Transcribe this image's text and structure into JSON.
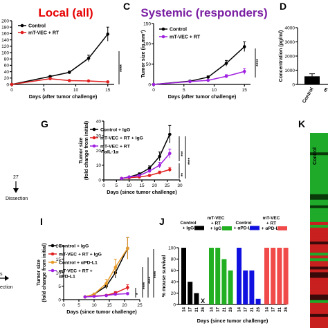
{
  "colors": {
    "black": "#000000",
    "red": "#e02020",
    "purple": "#a020e0",
    "orange": "#e69a28",
    "green": "#22b022",
    "blue": "#1010e0",
    "salmon": "#f04a4a",
    "title_red": "#e60000",
    "title_purple": "#7a1fa2"
  },
  "panel_letters": {
    "C": "C",
    "D": "D",
    "G": "G",
    "I": "I",
    "J": "J",
    "K": "K"
  },
  "left_fragments": {
    "day": "27",
    "dissection_1": "Dissection",
    "letter_s": "s",
    "dissection_2": "ection"
  },
  "chart_data": [
    {
      "id": "B",
      "type": "line",
      "title": "Local (all)",
      "xlabel": "Days (after tumor challenge)",
      "ylabel": "",
      "xlim": [
        0,
        16
      ],
      "ylim": [
        0,
        200
      ],
      "xticks": [
        "0",
        "5",
        "10",
        "15"
      ],
      "yticks": [
        "0",
        "20",
        "40",
        "60",
        "80",
        "100",
        "120",
        "140",
        "160",
        "180",
        "200"
      ],
      "series": [
        {
          "name": "Control",
          "color": "#000000",
          "x": [
            0,
            6,
            9,
            12,
            15
          ],
          "y": [
            0,
            25,
            38,
            82,
            158
          ],
          "err": [
            0,
            3,
            4,
            10,
            22
          ]
        },
        {
          "name": "mT-VEC + RT",
          "color": "#e02020",
          "x": [
            0,
            6,
            9,
            12,
            15
          ],
          "y": [
            0,
            18,
            12,
            11,
            8
          ],
          "err": [
            0,
            2,
            2,
            2,
            2
          ]
        }
      ],
      "significance": "****"
    },
    {
      "id": "C",
      "type": "line",
      "title": "Systemic (responders)",
      "xlabel": "Days (after tumor challenge)",
      "ylabel": "Tumor size (in mm²)",
      "xlim": [
        0,
        16
      ],
      "ylim": [
        0,
        150
      ],
      "xticks": [
        "0",
        "5",
        "10",
        "15"
      ],
      "yticks": [
        "0",
        "50",
        "100",
        "150"
      ],
      "series": [
        {
          "name": "Control",
          "color": "#000000",
          "x": [
            0,
            6,
            9,
            12,
            15
          ],
          "y": [
            0,
            8,
            18,
            52,
            93
          ],
          "err": [
            0,
            2,
            3,
            7,
            12
          ]
        },
        {
          "name": "mT-VEC + RT",
          "color": "#a020e0",
          "x": [
            0,
            6,
            9,
            12,
            15
          ],
          "y": [
            0,
            7,
            10,
            20,
            32
          ],
          "err": [
            0,
            2,
            2,
            4,
            7
          ]
        }
      ],
      "significance": "****"
    },
    {
      "id": "D",
      "type": "bar",
      "title": "",
      "ylabel": "Concentration (pg/ml)",
      "ylim": [
        0,
        4000
      ],
      "yticks": [
        "0",
        "1000",
        "2000",
        "3000",
        "4000"
      ],
      "categories": [
        "Control",
        "m"
      ],
      "values": [
        570,
        0
      ],
      "err": [
        180,
        0
      ]
    },
    {
      "id": "G",
      "type": "line",
      "title": "",
      "xlabel": "Days (since tumor challenge)",
      "ylabel": "Tumor size (fold change from initial)",
      "xlim": [
        0,
        30
      ],
      "ylim": [
        0,
        40
      ],
      "xticks": [
        "0",
        "5",
        "10",
        "15",
        "20",
        "25",
        "30"
      ],
      "yticks": [
        "0",
        "10",
        "20",
        "30",
        "40"
      ],
      "series": [
        {
          "name": "Control + IgG",
          "color": "#000000",
          "x": [
            7,
            10,
            14,
            18,
            22,
            26
          ],
          "y": [
            1,
            2,
            4,
            8,
            16,
            31
          ],
          "err": [
            0,
            0.4,
            0.8,
            1.5,
            3,
            6
          ]
        },
        {
          "name": "mT-VEC + RT + IgG",
          "color": "#e02020",
          "x": [
            7,
            10,
            14,
            18,
            22,
            26
          ],
          "y": [
            1,
            1.5,
            2,
            3,
            5,
            7
          ],
          "err": [
            0,
            0.3,
            0.4,
            0.6,
            1,
            1.5
          ]
        },
        {
          "name": "mT-VEC + RT + αIL-1α",
          "color": "#a020e0",
          "x": [
            7,
            10,
            14,
            18,
            22,
            26
          ],
          "y": [
            1,
            2,
            3,
            6,
            10,
            18
          ],
          "err": [
            0,
            0.4,
            0.6,
            1,
            2,
            3
          ]
        }
      ],
      "significance": [
        "***",
        "**",
        "****"
      ]
    },
    {
      "id": "I",
      "type": "line",
      "title": "",
      "xlabel": "Days (since tumor challenge)",
      "ylabel": "Tumor size (fold change from initial)",
      "xlim": [
        0,
        25
      ],
      "ylim": [
        0,
        20
      ],
      "xticks": [
        "0",
        "5",
        "10",
        "15",
        "20",
        "25"
      ],
      "yticks": [
        "0",
        "5",
        "10",
        "15",
        "20"
      ],
      "series": [
        {
          "name": "Control + IgG",
          "color": "#000000",
          "x": [
            7,
            10,
            14,
            17,
            21
          ],
          "y": [
            1,
            2,
            5,
            10,
            19
          ],
          "err": [
            0,
            0.4,
            1,
            2,
            4
          ]
        },
        {
          "name": "mT-VEC + RT + IgG",
          "color": "#e02020",
          "x": [
            7,
            10,
            14,
            17,
            21
          ],
          "y": [
            1,
            1.3,
            1.6,
            2.5,
            4.5
          ],
          "err": [
            0,
            0.2,
            0.3,
            0.5,
            1
          ]
        },
        {
          "name": "Control + αPD-L1",
          "color": "#e69a28",
          "x": [
            7,
            10,
            14,
            17,
            21
          ],
          "y": [
            1,
            2,
            6,
            12,
            19
          ],
          "err": [
            0,
            0.4,
            1.5,
            3,
            4
          ]
        },
        {
          "name": "mT-VEC + RT + αPD-L1",
          "color": "#a020e0",
          "x": [
            7,
            10,
            14,
            17,
            21
          ],
          "y": [
            1,
            1.2,
            1.5,
            2,
            2.2
          ],
          "err": [
            0,
            0.2,
            0.2,
            0.3,
            0.4
          ]
        }
      ],
      "significance": [
        "*",
        "****",
        "****",
        "****"
      ]
    },
    {
      "id": "J",
      "type": "bar",
      "title": "",
      "xlabel": "Days (since tumor challenge)",
      "ylabel": "% mouse survival",
      "ylim": [
        0,
        100
      ],
      "yticks": [
        "0",
        "20",
        "40",
        "60",
        "80",
        "100"
      ],
      "categories": [
        "14",
        "17",
        "21",
        "26"
      ],
      "series": [
        {
          "name": "Control + IgG",
          "color": "#000000",
          "values": [
            100,
            40,
            20,
            0
          ]
        },
        {
          "name": "mT-VEC + RT + IgG",
          "color": "#22b022",
          "values": [
            100,
            100,
            80,
            60
          ]
        },
        {
          "name": "Control + αPD-L1",
          "color": "#1010e0",
          "values": [
            100,
            60,
            60,
            10
          ]
        },
        {
          "name": "mT-VEC + RT + αPD-L1",
          "color": "#f04a4a",
          "values": [
            100,
            100,
            100,
            100
          ]
        }
      ],
      "marker_x": "X"
    }
  ]
}
